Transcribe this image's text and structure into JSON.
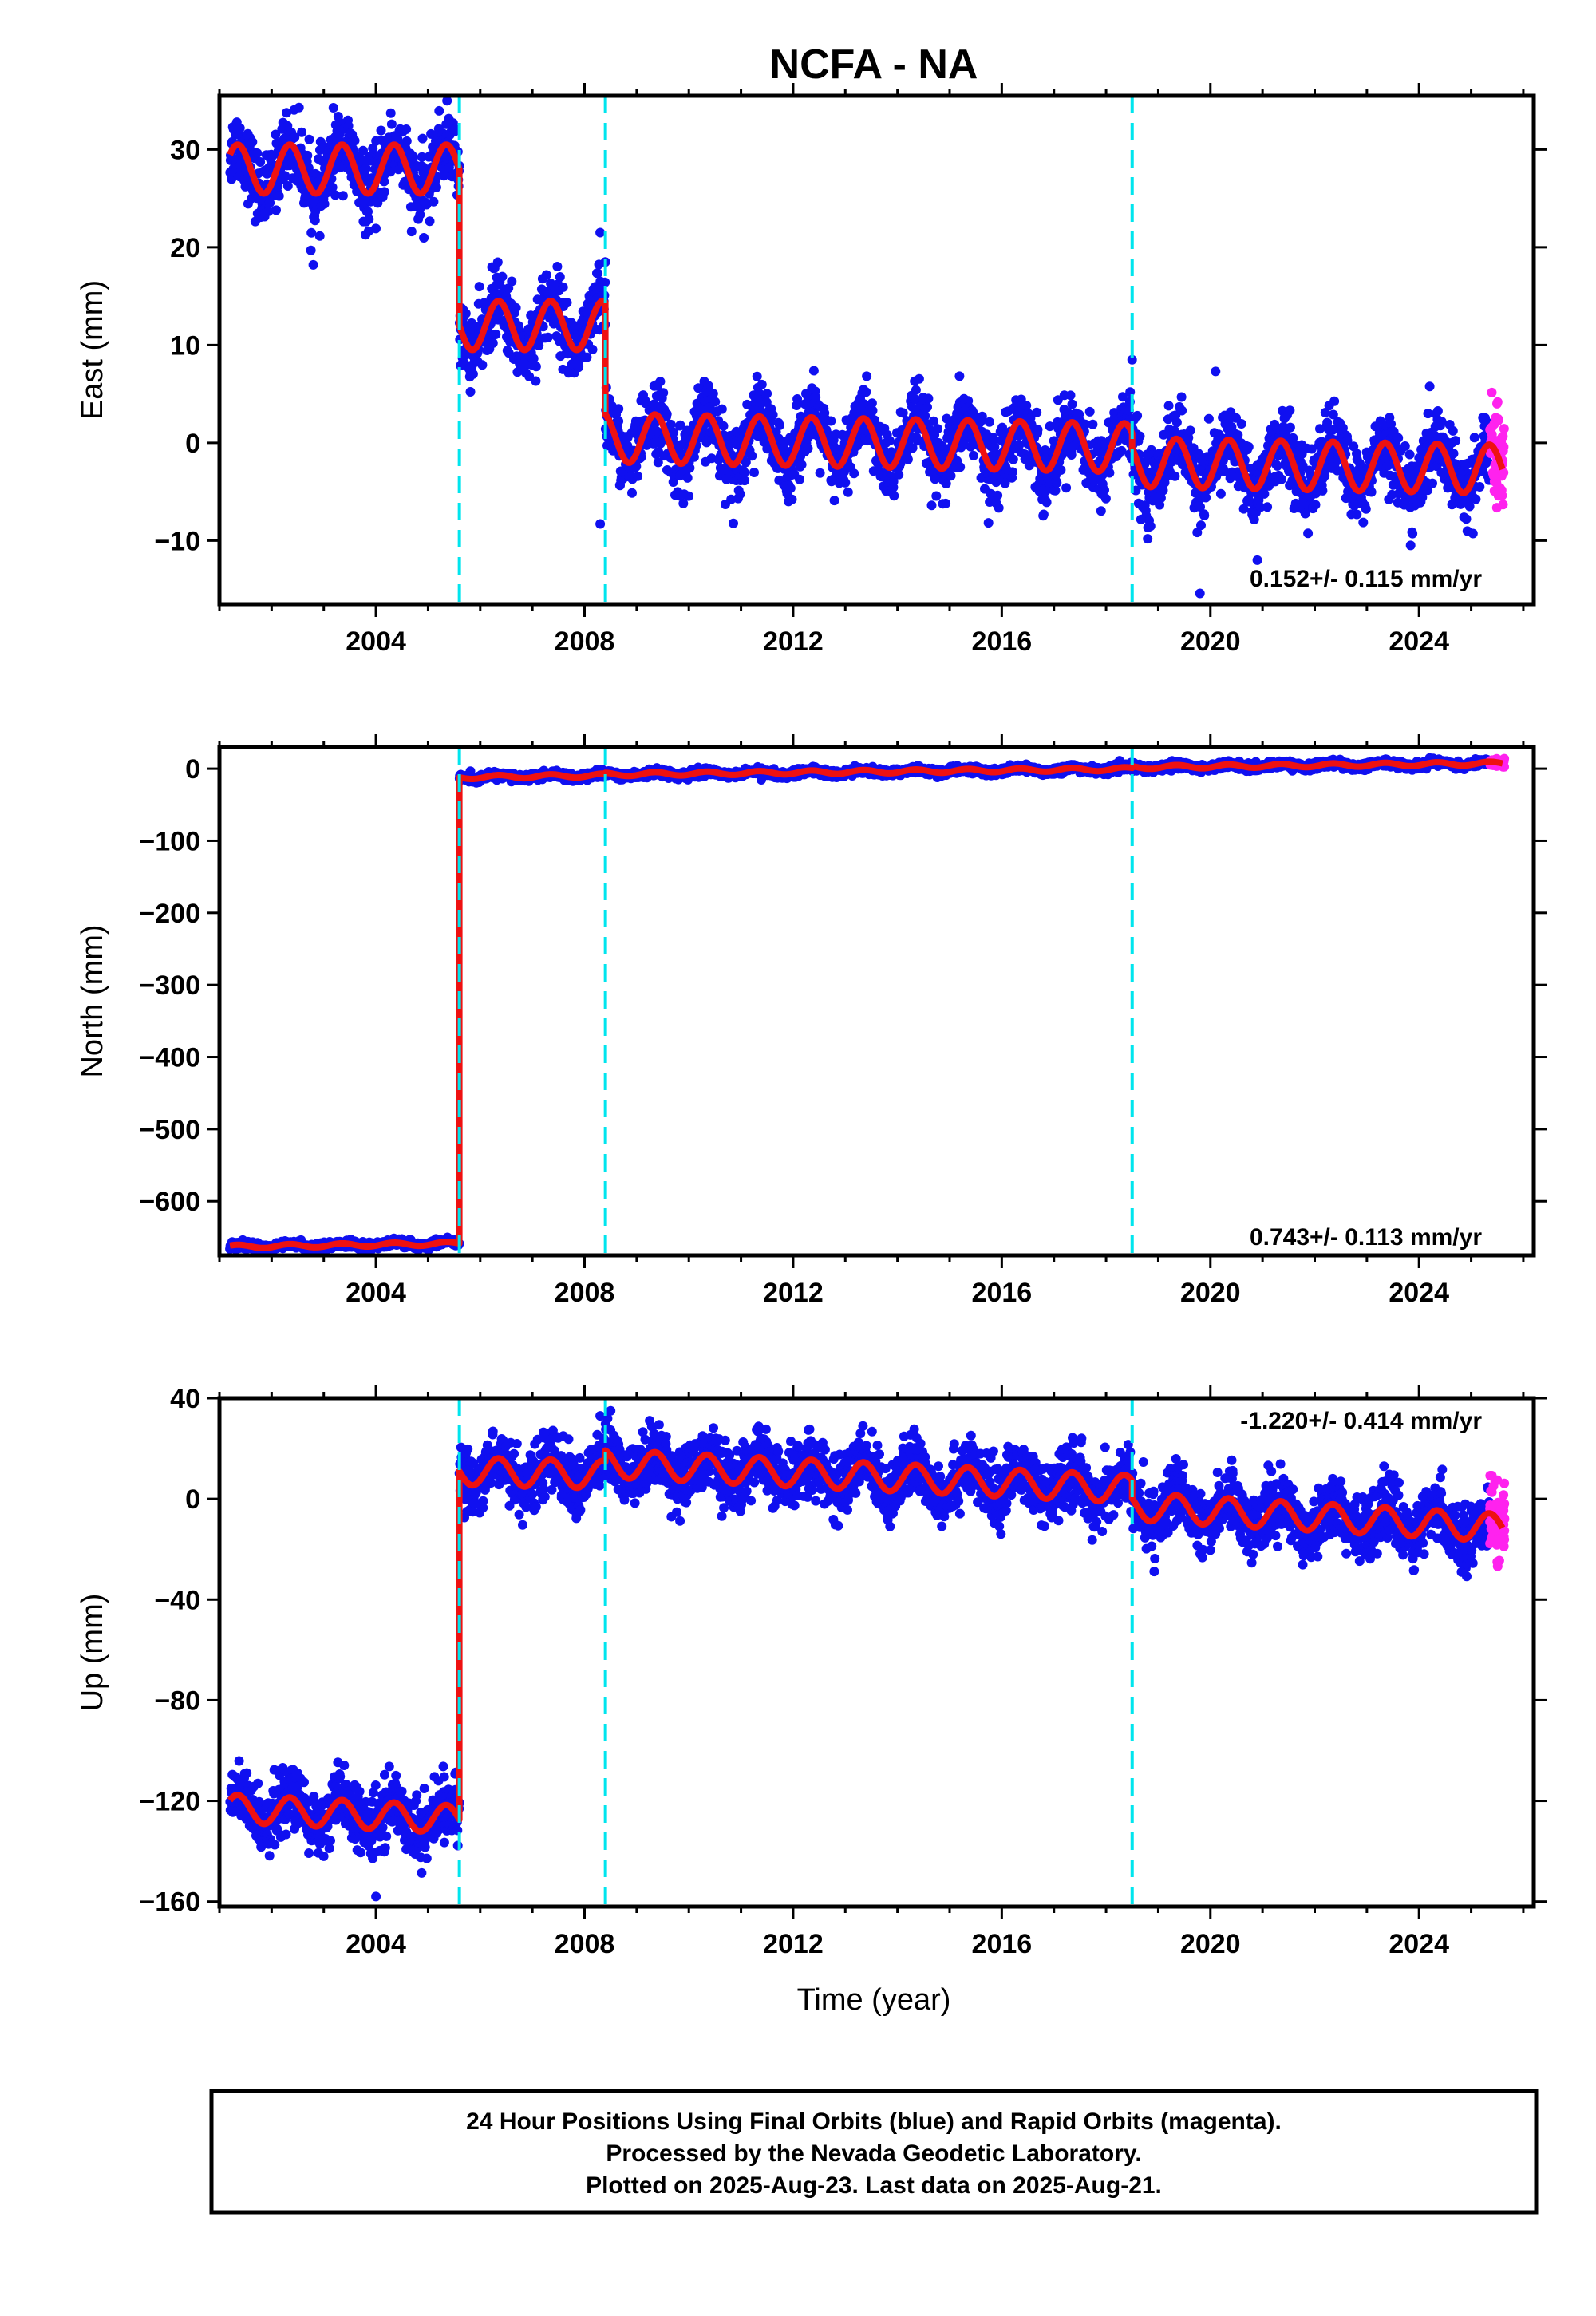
{
  "title": "NCFA - NA",
  "colors": {
    "final": "#1010f0",
    "rapid": "#ff22ee",
    "model": "#ee1111",
    "offsets": "#00e5ee"
  },
  "chart_data": [
    {
      "type": "scatter",
      "panel": "east",
      "ylabel": "East (mm)",
      "xlim": [
        2001.0,
        2026.2
      ],
      "ylim": [
        -16.5,
        35.5
      ],
      "yticks": [
        30,
        20,
        10,
        0,
        -10
      ],
      "xticks": [
        2004,
        2008,
        2012,
        2016,
        2020,
        2024
      ],
      "rate": "0.152+/- 0.115 mm/yr",
      "offsets": [
        2005.6,
        2008.4,
        2018.5
      ],
      "model": [
        {
          "x": [
            2001.2,
            2005.6
          ],
          "base": 28.0,
          "slope": 0.0,
          "amp": 2.5
        },
        {
          "x": [
            2005.6,
            2008.4
          ],
          "base": 12.0,
          "slope": 0.0,
          "amp": 2.5
        },
        {
          "x": [
            2008.4,
            2018.5
          ],
          "base": 0.5,
          "slope": -0.1,
          "amp": 2.5
        },
        {
          "x": [
            2018.5,
            2025.6
          ],
          "base": -2.0,
          "slope": -0.1,
          "amp": 2.5
        }
      ],
      "scatter_sd": 1.8,
      "outliers": [
        [
          2002.8,
          18.2
        ],
        [
          2008.3,
          21.5
        ],
        [
          2008.4,
          18.5
        ],
        [
          2008.3,
          -8.3
        ],
        [
          2018.5,
          8.5
        ],
        [
          2019.8,
          -15.4
        ],
        [
          2020.1,
          7.3
        ],
        [
          2020.9,
          -12.0
        ]
      ]
    },
    {
      "type": "scatter",
      "panel": "north",
      "ylabel": "North (mm)",
      "xlim": [
        2001.0,
        2026.2
      ],
      "ylim": [
        -675,
        30
      ],
      "yticks": [
        0,
        -100,
        -200,
        -300,
        -400,
        -500,
        -600
      ],
      "xticks": [
        2004,
        2008,
        2012,
        2016,
        2020,
        2024
      ],
      "rate": "0.743+/- 0.113 mm/yr",
      "offsets": [
        2005.6,
        2008.4,
        2018.5
      ],
      "model": [
        {
          "x": [
            2001.2,
            2005.6
          ],
          "base": -663.0,
          "slope": 1.0,
          "amp": 2.5
        },
        {
          "x": [
            2005.6,
            2008.4
          ],
          "base": -12.0,
          "slope": 1.0,
          "amp": 2.5
        },
        {
          "x": [
            2008.4,
            2018.5
          ],
          "base": -8.0,
          "slope": 0.75,
          "amp": 2.5
        },
        {
          "x": [
            2018.5,
            2025.6
          ],
          "base": 2.0,
          "slope": 0.75,
          "amp": 2.5
        }
      ],
      "scatter_sd": 2.5,
      "outliers": []
    },
    {
      "type": "scatter",
      "panel": "up",
      "ylabel": "Up (mm)",
      "xlabel": "Time (year)",
      "xlim": [
        2001.0,
        2026.2
      ],
      "ylim": [
        -162,
        40
      ],
      "yticks": [
        40,
        0,
        -40,
        -80,
        -120,
        -160
      ],
      "xticks": [
        2004,
        2008,
        2012,
        2016,
        2020,
        2024
      ],
      "rate": "-1.220+/- 0.414 mm/yr",
      "offsets": [
        2005.6,
        2008.4,
        2018.5
      ],
      "model": [
        {
          "x": [
            2001.2,
            2005.6
          ],
          "base": -123.0,
          "slope": -1.0,
          "amp": 5.5
        },
        {
          "x": [
            2005.6,
            2008.4
          ],
          "base": 11.0,
          "slope": -0.5,
          "amp": 5.5
        },
        {
          "x": [
            2008.4,
            2018.5
          ],
          "base": 14.0,
          "slope": -1.0,
          "amp": 5.5
        },
        {
          "x": [
            2018.5,
            2025.6
          ],
          "base": -3.0,
          "slope": -1.2,
          "amp": 5.5
        }
      ],
      "scatter_sd": 6.0,
      "outliers": [
        [
          2004.0,
          -158.0
        ],
        [
          2008.5,
          35.0
        ],
        [
          2008.3,
          33.0
        ]
      ]
    }
  ],
  "footer": {
    "line1": "24 Hour Positions Using Final Orbits (blue) and Rapid Orbits (magenta).",
    "line2": "Processed by the Nevada Geodetic Laboratory.",
    "line3": "Plotted on 2025-Aug-23. Last data on 2025-Aug-21."
  }
}
